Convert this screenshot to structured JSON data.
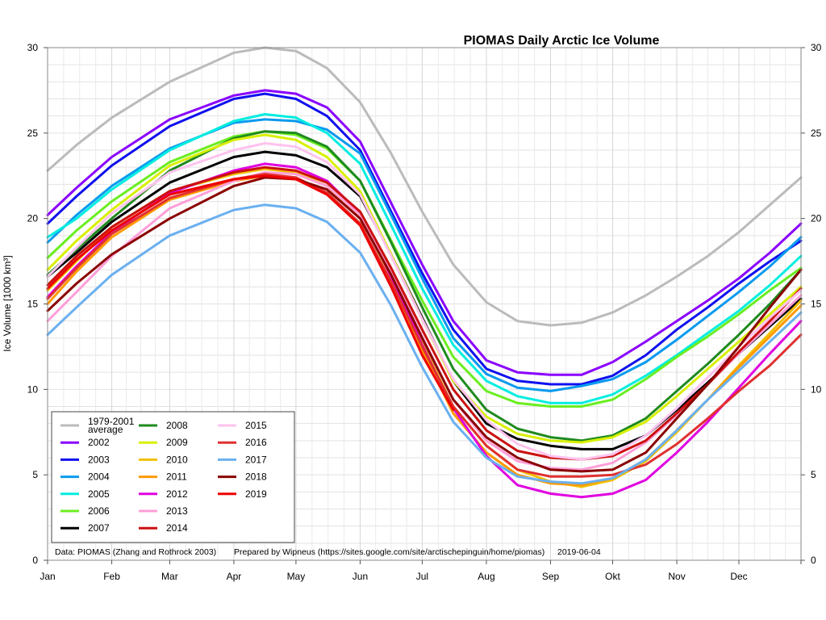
{
  "chart_data": {
    "type": "line",
    "title": "PIOMAS Daily Arctic Ice Volume",
    "ylabel": "Ice Volume [1000 km³]",
    "xlabel": "",
    "ylim": [
      0,
      30
    ],
    "y_ticks": [
      0,
      5,
      10,
      15,
      20,
      25,
      30
    ],
    "x_axis": "day_of_year",
    "xlim": [
      1,
      365
    ],
    "month_starts": [
      1,
      32,
      60,
      91,
      121,
      152,
      182,
      213,
      244,
      274,
      305,
      335,
      365
    ],
    "month_labels": [
      "Jan",
      "Feb",
      "Mar",
      "Apr",
      "May",
      "Jun",
      "Jul",
      "Aug",
      "Sep",
      "Okt",
      "Nov",
      "Dec"
    ],
    "grid": true,
    "legend_position": "bottom-left",
    "footer": {
      "source": "Data: PIOMAS (Zhang and Rothrock 2003)",
      "prepared": "Prepared by Wipneus (https://sites.google.com/site/arctischepinguin/home/piomas)",
      "date": "2019-06-04"
    },
    "series": [
      {
        "name": "1979-2001 average",
        "label_lines": [
          "1979-2001",
          "average"
        ],
        "color": "#bbbbbb",
        "x": [
          1,
          15,
          32,
          60,
          91,
          106,
          121,
          136,
          152,
          167,
          182,
          197,
          213,
          228,
          244,
          259,
          274,
          290,
          305,
          320,
          335,
          350,
          365
        ],
        "y": [
          22.8,
          24.3,
          25.9,
          28.0,
          29.7,
          30.0,
          29.8,
          28.8,
          26.8,
          23.8,
          20.4,
          17.3,
          15.1,
          14.0,
          13.75,
          13.9,
          14.5,
          15.5,
          16.6,
          17.8,
          19.2,
          20.8,
          22.4
        ]
      },
      {
        "name": "2002",
        "color": "#8a00ff",
        "x": [
          1,
          15,
          32,
          60,
          91,
          106,
          121,
          136,
          152,
          167,
          182,
          197,
          213,
          228,
          244,
          259,
          274,
          290,
          305,
          320,
          335,
          350,
          365
        ],
        "y": [
          20.2,
          21.8,
          23.6,
          25.8,
          27.2,
          27.5,
          27.3,
          26.5,
          24.5,
          20.9,
          17.3,
          14.0,
          11.7,
          11.0,
          10.85,
          10.85,
          11.6,
          12.8,
          14.0,
          15.2,
          16.5,
          18.0,
          19.7
        ]
      },
      {
        "name": "2003",
        "color": "#1010ee",
        "x": [
          1,
          15,
          32,
          60,
          91,
          106,
          121,
          136,
          152,
          167,
          182,
          197,
          213,
          228,
          244,
          259,
          274,
          290,
          305,
          320,
          335,
          350,
          365
        ],
        "y": [
          19.7,
          21.3,
          23.1,
          25.4,
          27.0,
          27.3,
          27.0,
          26.0,
          24.0,
          20.4,
          16.8,
          13.5,
          11.2,
          10.5,
          10.3,
          10.3,
          10.8,
          12.0,
          13.5,
          14.8,
          16.2,
          17.5,
          18.7
        ]
      },
      {
        "name": "2004",
        "color": "#0a9aee",
        "x": [
          1,
          15,
          32,
          60,
          91,
          106,
          121,
          136,
          152,
          167,
          182,
          197,
          213,
          228,
          244,
          259,
          274,
          290,
          305,
          320,
          335,
          350,
          365
        ],
        "y": [
          18.6,
          20.2,
          21.9,
          24.1,
          25.6,
          25.8,
          25.7,
          25.2,
          23.8,
          20.2,
          16.5,
          13.0,
          10.9,
          10.1,
          9.9,
          10.2,
          10.6,
          11.6,
          12.9,
          14.3,
          15.7,
          17.2,
          18.9
        ]
      },
      {
        "name": "2005",
        "color": "#00ede0",
        "x": [
          1,
          15,
          32,
          60,
          91,
          106,
          121,
          136,
          152,
          167,
          182,
          197,
          213,
          228,
          244,
          259,
          274,
          290,
          305,
          320,
          335,
          350,
          365
        ],
        "y": [
          18.9,
          20.0,
          21.7,
          24.0,
          25.7,
          26.1,
          25.9,
          25.0,
          23.2,
          19.6,
          15.9,
          12.6,
          10.5,
          9.6,
          9.2,
          9.2,
          9.7,
          10.8,
          12.0,
          13.3,
          14.6,
          16.1,
          17.8
        ]
      },
      {
        "name": "2006",
        "color": "#6aee20",
        "x": [
          1,
          15,
          32,
          60,
          91,
          106,
          121,
          136,
          152,
          167,
          182,
          197,
          213,
          228,
          244,
          259,
          274,
          290,
          305,
          320,
          335,
          350,
          365
        ],
        "y": [
          17.7,
          19.3,
          21.0,
          23.3,
          24.8,
          25.1,
          24.9,
          24.1,
          22.2,
          18.7,
          15.2,
          11.9,
          9.9,
          9.2,
          9.0,
          9.0,
          9.4,
          10.6,
          11.9,
          13.1,
          14.4,
          15.8,
          17.1
        ]
      },
      {
        "name": "2007",
        "color": "#000000",
        "x": [
          1,
          15,
          32,
          60,
          91,
          106,
          121,
          136,
          152,
          167,
          182,
          197,
          213,
          228,
          244,
          259,
          274,
          290,
          305,
          320,
          335,
          350,
          365
        ],
        "y": [
          16.6,
          18.0,
          19.8,
          22.1,
          23.6,
          23.9,
          23.7,
          23.0,
          21.3,
          17.9,
          14.2,
          10.5,
          8.0,
          7.1,
          6.7,
          6.5,
          6.5,
          7.3,
          8.8,
          10.4,
          12.1,
          13.7,
          15.3
        ]
      },
      {
        "name": "2008",
        "color": "#1f8a1f",
        "x": [
          1,
          15,
          32,
          60,
          91,
          106,
          121,
          136,
          152,
          167,
          182,
          197,
          213,
          228,
          244,
          259,
          274,
          290,
          305,
          320,
          335,
          350,
          365
        ],
        "y": [
          16.7,
          18.2,
          20.0,
          22.8,
          24.7,
          25.1,
          25.0,
          24.2,
          22.2,
          18.6,
          14.8,
          11.2,
          8.8,
          7.7,
          7.2,
          7.0,
          7.3,
          8.3,
          9.9,
          11.5,
          13.2,
          15.0,
          17.0
        ]
      },
      {
        "name": "2009",
        "color": "#d8f000",
        "x": [
          1,
          15,
          32,
          60,
          91,
          106,
          121,
          136,
          152,
          167,
          182,
          197,
          213,
          228,
          244,
          259,
          274,
          290,
          305,
          320,
          335,
          350,
          365
        ],
        "y": [
          17.0,
          18.7,
          20.5,
          23.1,
          24.6,
          24.9,
          24.6,
          23.6,
          21.6,
          17.9,
          14.1,
          10.5,
          8.4,
          7.4,
          7.0,
          6.9,
          7.2,
          8.1,
          9.6,
          11.2,
          12.8,
          14.4,
          16.0
        ]
      },
      {
        "name": "2010",
        "color": "#f0c000",
        "x": [
          1,
          15,
          32,
          60,
          91,
          106,
          121,
          136,
          152,
          167,
          182,
          197,
          213,
          228,
          244,
          259,
          274,
          290,
          305,
          320,
          335,
          350,
          365
        ],
        "y": [
          15.8,
          17.5,
          19.5,
          21.6,
          22.6,
          22.9,
          22.7,
          21.9,
          20.1,
          16.6,
          12.7,
          9.0,
          6.7,
          5.3,
          4.6,
          4.3,
          4.7,
          5.8,
          7.5,
          9.4,
          11.4,
          13.3,
          15.2
        ]
      },
      {
        "name": "2011",
        "color": "#ff9a00",
        "x": [
          1,
          15,
          32,
          60,
          91,
          106,
          121,
          136,
          152,
          167,
          182,
          197,
          213,
          228,
          244,
          259,
          274,
          290,
          305,
          320,
          335,
          350,
          365
        ],
        "y": [
          15.0,
          16.9,
          18.9,
          21.1,
          22.2,
          22.5,
          22.3,
          21.5,
          19.7,
          16.2,
          12.3,
          8.6,
          6.3,
          5.0,
          4.5,
          4.4,
          4.8,
          5.9,
          7.6,
          9.4,
          11.3,
          13.1,
          14.9
        ]
      },
      {
        "name": "2012",
        "color": "#e000e0",
        "x": [
          1,
          15,
          32,
          60,
          91,
          106,
          121,
          136,
          152,
          167,
          182,
          197,
          213,
          228,
          244,
          259,
          274,
          290,
          305,
          320,
          335,
          350,
          365
        ],
        "y": [
          15.4,
          17.2,
          19.2,
          21.5,
          22.8,
          23.2,
          23.0,
          22.2,
          20.3,
          16.6,
          12.6,
          8.9,
          6.1,
          4.4,
          3.9,
          3.7,
          3.9,
          4.7,
          6.3,
          8.1,
          10.1,
          12.1,
          14.0
        ]
      },
      {
        "name": "2013",
        "color": "#ff9fd8",
        "x": [
          1,
          15,
          32,
          60,
          91,
          106,
          121,
          136,
          152,
          167,
          182,
          197,
          213,
          228,
          244,
          259,
          274,
          290,
          305,
          320,
          335,
          350,
          365
        ],
        "y": [
          14.0,
          15.7,
          17.8,
          20.6,
          22.2,
          22.7,
          22.6,
          21.9,
          20.2,
          16.9,
          13.1,
          9.4,
          7.0,
          5.8,
          5.4,
          5.3,
          5.7,
          6.9,
          8.5,
          10.3,
          12.1,
          13.8,
          15.5
        ]
      },
      {
        "name": "2014",
        "color": "#cc1010",
        "x": [
          1,
          15,
          32,
          60,
          91,
          106,
          121,
          136,
          152,
          167,
          182,
          197,
          213,
          228,
          244,
          259,
          274,
          290,
          305,
          320,
          335,
          350,
          365
        ],
        "y": [
          16.1,
          17.8,
          19.5,
          21.6,
          22.7,
          23.0,
          22.8,
          22.1,
          20.4,
          17.1,
          13.5,
          10.0,
          7.6,
          6.4,
          6.0,
          5.9,
          6.1,
          7.0,
          8.6,
          10.3,
          12.2,
          14.0,
          15.9
        ]
      },
      {
        "name": "2015",
        "color": "#ffc2ee",
        "x": [
          1,
          15,
          32,
          60,
          91,
          106,
          121,
          136,
          152,
          167,
          182,
          197,
          213,
          228,
          244,
          259,
          274,
          290,
          305,
          320,
          335,
          350,
          365
        ],
        "y": [
          16.6,
          18.3,
          20.3,
          22.7,
          24.0,
          24.4,
          24.2,
          23.3,
          21.4,
          17.8,
          14.1,
          10.6,
          8.2,
          6.8,
          6.1,
          5.9,
          6.2,
          7.3,
          8.9,
          10.7,
          12.5,
          14.2,
          15.8
        ]
      },
      {
        "name": "2016",
        "color": "#e03030",
        "x": [
          1,
          15,
          32,
          60,
          91,
          106,
          121,
          136,
          152,
          167,
          182,
          197,
          213,
          228,
          244,
          259,
          274,
          290,
          305,
          320,
          335,
          350,
          365
        ],
        "y": [
          15.3,
          17.1,
          19.1,
          21.2,
          22.3,
          22.6,
          22.4,
          21.5,
          19.7,
          16.3,
          12.5,
          9.0,
          6.7,
          5.3,
          4.9,
          4.9,
          5.0,
          5.6,
          6.8,
          8.3,
          9.9,
          11.4,
          13.2
        ]
      },
      {
        "name": "2017",
        "color": "#6ab0f0",
        "x": [
          1,
          15,
          32,
          60,
          91,
          106,
          121,
          136,
          152,
          167,
          182,
          197,
          213,
          228,
          244,
          259,
          274,
          290,
          305,
          320,
          335,
          350,
          365
        ],
        "y": [
          13.2,
          14.8,
          16.7,
          19.0,
          20.5,
          20.8,
          20.6,
          19.8,
          18.0,
          14.9,
          11.3,
          8.1,
          6.0,
          4.9,
          4.6,
          4.5,
          4.8,
          5.9,
          7.6,
          9.4,
          11.1,
          12.8,
          14.5
        ]
      },
      {
        "name": "2018",
        "color": "#8a0000",
        "x": [
          1,
          15,
          32,
          60,
          91,
          106,
          121,
          136,
          152,
          167,
          182,
          197,
          213,
          228,
          244,
          259,
          274,
          290,
          305,
          320,
          335,
          350,
          365
        ],
        "y": [
          14.6,
          16.2,
          17.9,
          20.0,
          21.9,
          22.4,
          22.3,
          21.7,
          20.0,
          16.7,
          13.0,
          9.4,
          7.2,
          6.0,
          5.3,
          5.2,
          5.3,
          6.3,
          8.3,
          10.3,
          12.5,
          14.8,
          17.0
        ]
      },
      {
        "name": "2019",
        "color": "#ee0000",
        "x": [
          1,
          15,
          32,
          60,
          91,
          106,
          121,
          136,
          152,
          167,
          182,
          197
        ],
        "y": [
          15.9,
          17.6,
          19.3,
          21.4,
          22.3,
          22.5,
          22.3,
          21.4,
          19.6,
          16.0,
          12.0,
          8.8
        ]
      }
    ]
  }
}
